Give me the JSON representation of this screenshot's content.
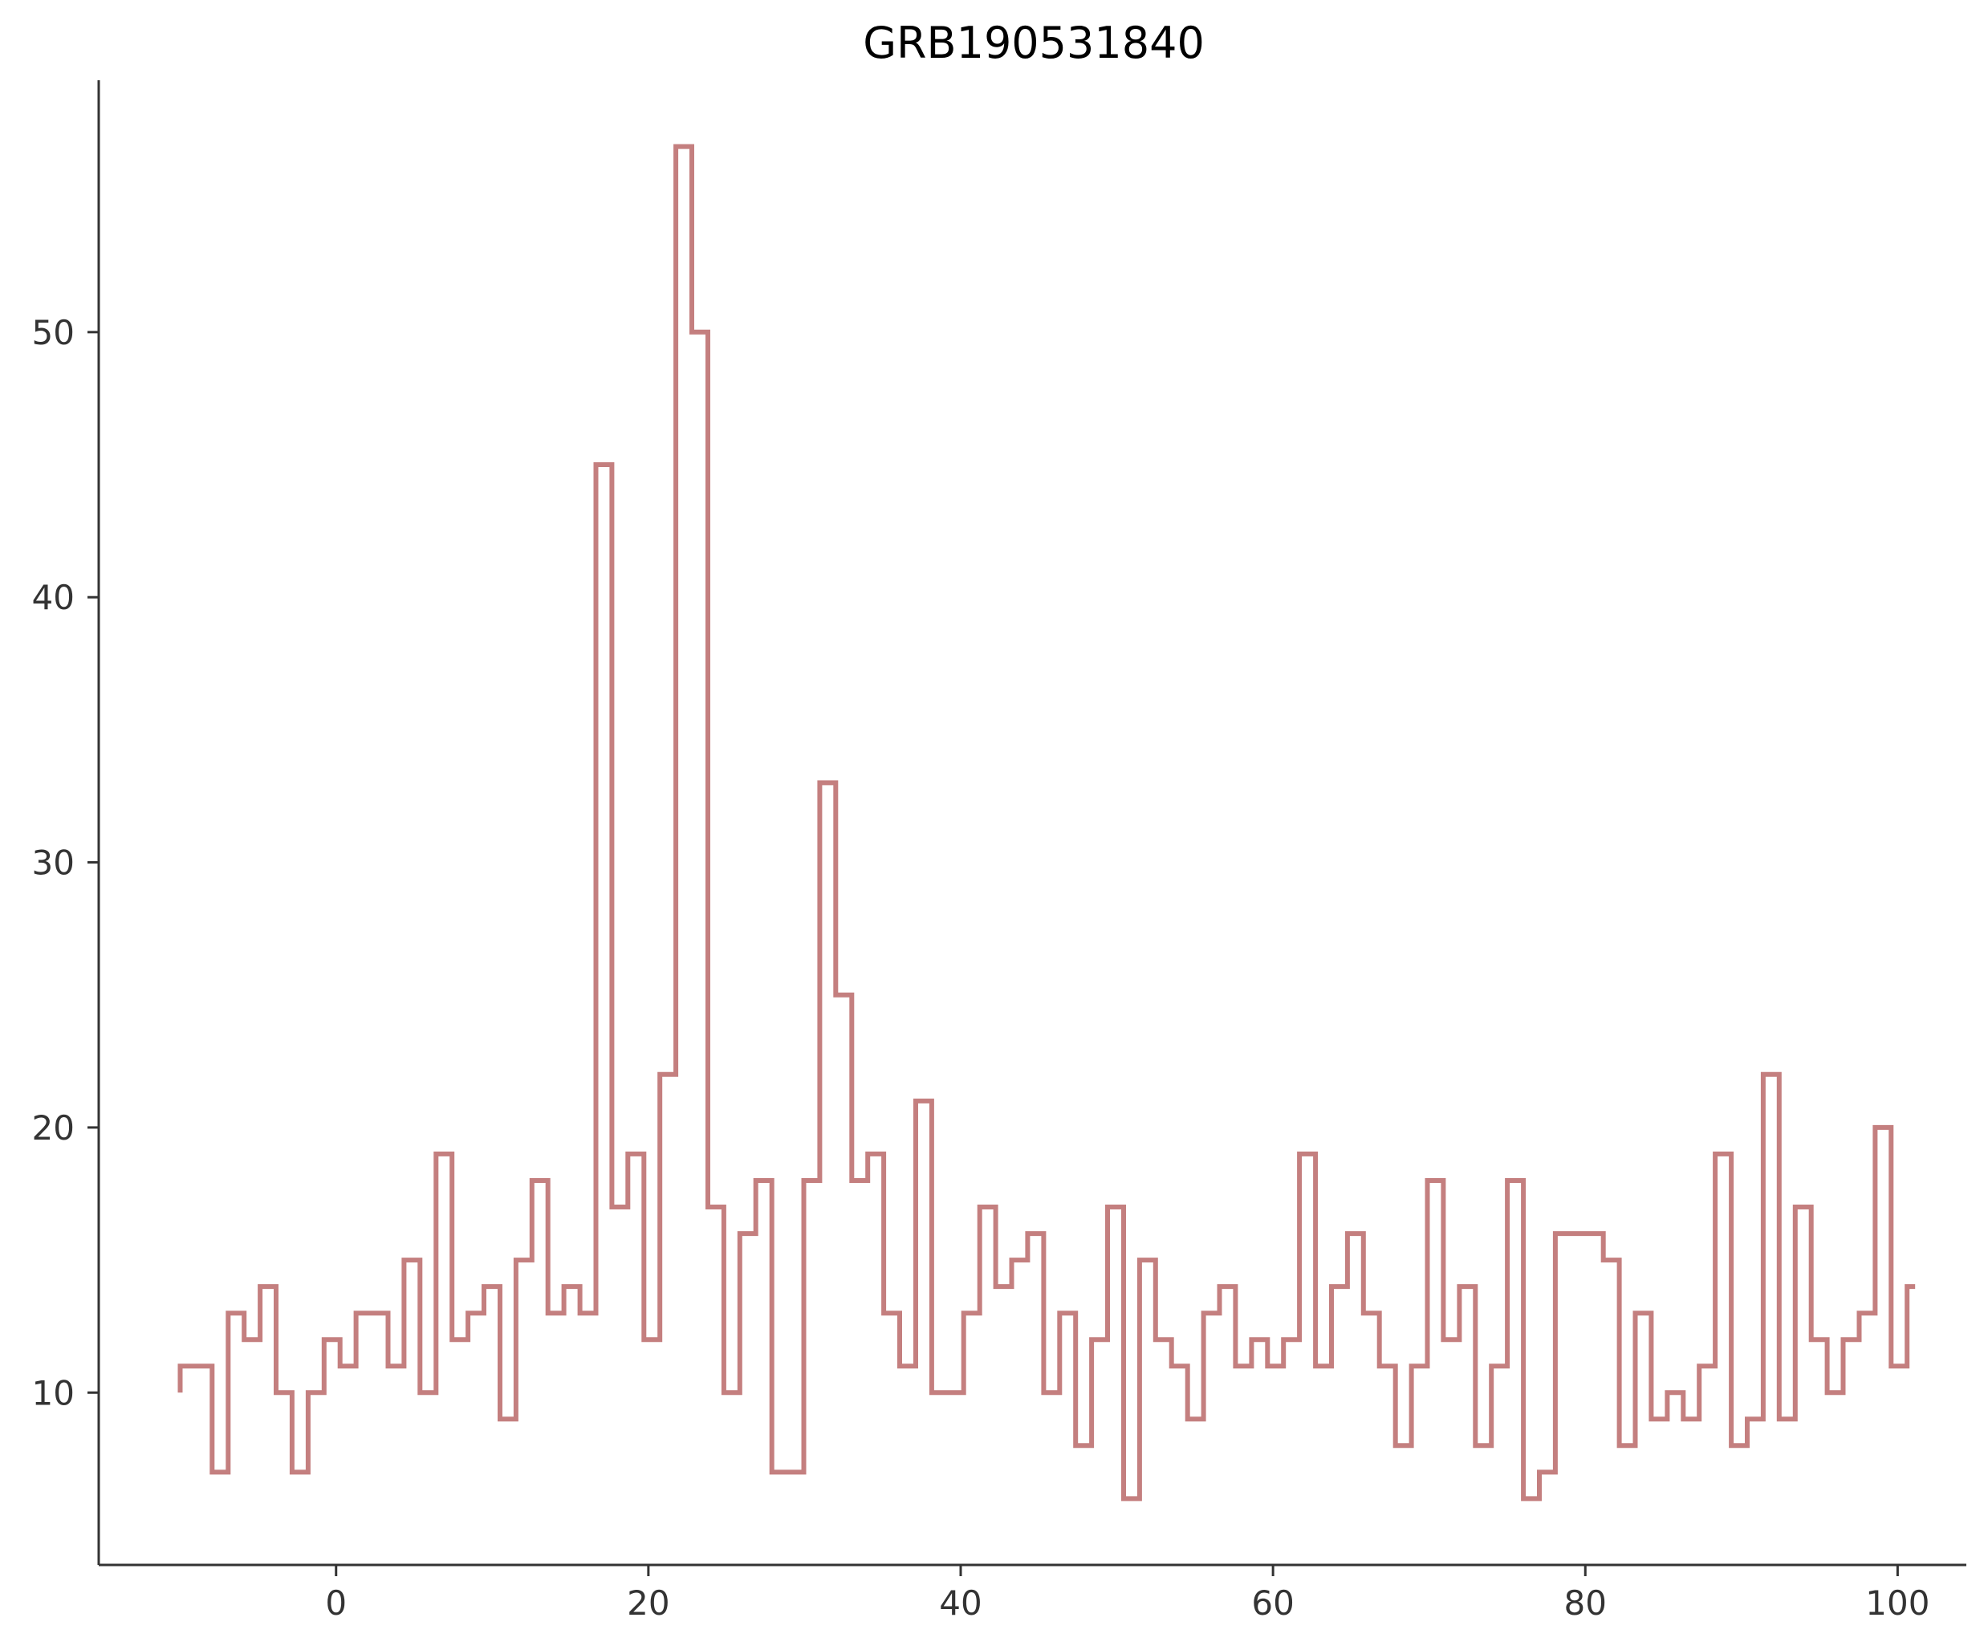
{
  "chart_data": {
    "type": "line",
    "drawstyle": "steps-post",
    "title": "GRB190531840",
    "xlabel": "",
    "ylabel": "",
    "xlim": [
      -15.2,
      104.4
    ],
    "ylim": [
      3.5,
      59.5
    ],
    "xticks": [
      0,
      20,
      40,
      60,
      80,
      100
    ],
    "yticks": [
      10,
      20,
      30,
      40,
      50
    ],
    "grid": false,
    "legend": "none",
    "color": "#c47f7f",
    "series": [
      {
        "bin_width": 1.024,
        "x_start": -9.984,
        "values": [
          11,
          11,
          7,
          13,
          12,
          14,
          10,
          7,
          10,
          12,
          11,
          13,
          13,
          11,
          15,
          10,
          19,
          12,
          13,
          14,
          9,
          15,
          18,
          13,
          14,
          13,
          45,
          17,
          19,
          12,
          22,
          57,
          50,
          17,
          10,
          16,
          18,
          7,
          7,
          18,
          33,
          25,
          18,
          19,
          13,
          11,
          21,
          10,
          10,
          13,
          17,
          14,
          15,
          16,
          10,
          13,
          8,
          12,
          17,
          6,
          15,
          12,
          11,
          9,
          13,
          14,
          11,
          12,
          11,
          12,
          19,
          11,
          14,
          16,
          13,
          11,
          8,
          11,
          18,
          12,
          14,
          8,
          11,
          18,
          6,
          7,
          16,
          16,
          16,
          15,
          8,
          13,
          9,
          10,
          9,
          11,
          19,
          8,
          9,
          22,
          9,
          17,
          12,
          10,
          12,
          13,
          20,
          11,
          14
        ]
      }
    ]
  }
}
